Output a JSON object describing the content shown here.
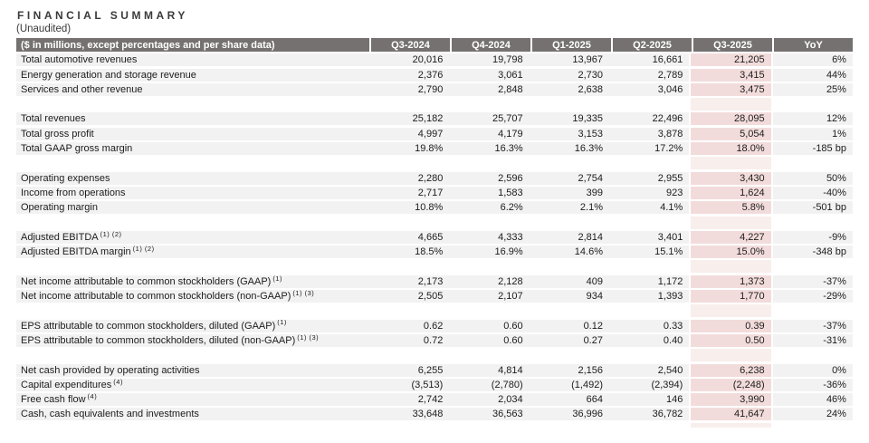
{
  "title": "FINANCIAL SUMMARY",
  "subtitle": "(Unaudited)",
  "colors": {
    "header_bg": "#767171",
    "header_text": "#ffffff",
    "row_bg": "#f2f2f2",
    "highlight_bg": "#f2dcdb",
    "highlight_faint_bg": "#f8eeec",
    "text": "#1c1c1c"
  },
  "table": {
    "columns": [
      "($ in millions, except percentages and per share data)",
      "Q3-2024",
      "Q4-2024",
      "Q1-2025",
      "Q2-2025",
      "Q3-2025",
      "YoY"
    ],
    "highlight_column": "Q3-2025",
    "highlight_value_index": 4,
    "rows": [
      {
        "type": "data",
        "label": "Total automotive revenues",
        "sup": "",
        "values": [
          "20,016",
          "19,798",
          "13,967",
          "16,661",
          "21,205",
          "6%"
        ]
      },
      {
        "type": "data",
        "label": "Energy generation and storage revenue",
        "sup": "",
        "values": [
          "2,376",
          "3,061",
          "2,730",
          "2,789",
          "3,415",
          "44%"
        ]
      },
      {
        "type": "data",
        "label": "Services and other revenue",
        "sup": "",
        "values": [
          "2,790",
          "2,848",
          "2,638",
          "3,046",
          "3,475",
          "25%"
        ]
      },
      {
        "type": "spacer"
      },
      {
        "type": "data",
        "label": "Total revenues",
        "sup": "",
        "values": [
          "25,182",
          "25,707",
          "19,335",
          "22,496",
          "28,095",
          "12%"
        ]
      },
      {
        "type": "data",
        "label": "Total gross profit",
        "sup": "",
        "values": [
          "4,997",
          "4,179",
          "3,153",
          "3,878",
          "5,054",
          "1%"
        ]
      },
      {
        "type": "data",
        "label": "Total GAAP gross margin",
        "sup": "",
        "values": [
          "19.8%",
          "16.3%",
          "16.3%",
          "17.2%",
          "18.0%",
          "-185 bp"
        ]
      },
      {
        "type": "spacer"
      },
      {
        "type": "data",
        "label": "Operating expenses",
        "sup": "",
        "values": [
          "2,280",
          "2,596",
          "2,754",
          "2,955",
          "3,430",
          "50%"
        ]
      },
      {
        "type": "data",
        "label": "Income from operations",
        "sup": "",
        "values": [
          "2,717",
          "1,583",
          "399",
          "923",
          "1,624",
          "-40%"
        ]
      },
      {
        "type": "data",
        "label": "Operating margin",
        "sup": "",
        "values": [
          "10.8%",
          "6.2%",
          "2.1%",
          "4.1%",
          "5.8%",
          "-501 bp"
        ]
      },
      {
        "type": "spacer"
      },
      {
        "type": "data",
        "label": "Adjusted EBITDA",
        "sup": "(1) (2)",
        "values": [
          "4,665",
          "4,333",
          "2,814",
          "3,401",
          "4,227",
          "-9%"
        ]
      },
      {
        "type": "data",
        "label": "Adjusted EBITDA margin",
        "sup": "(1) (2)",
        "values": [
          "18.5%",
          "16.9%",
          "14.6%",
          "15.1%",
          "15.0%",
          "-348 bp"
        ]
      },
      {
        "type": "spacer"
      },
      {
        "type": "data",
        "label": "Net income attributable to common stockholders (GAAP)",
        "sup": "(1)",
        "values": [
          "2,173",
          "2,128",
          "409",
          "1,172",
          "1,373",
          "-37%"
        ]
      },
      {
        "type": "data",
        "label": "Net income attributable to common stockholders (non-GAAP)",
        "sup": "(1) (3)",
        "values": [
          "2,505",
          "2,107",
          "934",
          "1,393",
          "1,770",
          "-29%"
        ]
      },
      {
        "type": "spacer"
      },
      {
        "type": "data",
        "label": "EPS attributable to common stockholders, diluted (GAAP)",
        "sup": "(1)",
        "values": [
          "0.62",
          "0.60",
          "0.12",
          "0.33",
          "0.39",
          "-37%"
        ]
      },
      {
        "type": "data",
        "label": "EPS attributable to common stockholders, diluted (non-GAAP)",
        "sup": "(1) (3)",
        "values": [
          "0.72",
          "0.60",
          "0.27",
          "0.40",
          "0.50",
          "-31%"
        ]
      },
      {
        "type": "spacer"
      },
      {
        "type": "data",
        "label": "Net cash provided by operating activities",
        "sup": "",
        "values": [
          "6,255",
          "4,814",
          "2,156",
          "2,540",
          "6,238",
          "0%"
        ]
      },
      {
        "type": "data",
        "label": "Capital expenditures",
        "sup": "(4)",
        "values": [
          "(3,513)",
          "(2,780)",
          "(1,492)",
          "(2,394)",
          "(2,248)",
          "-36%"
        ]
      },
      {
        "type": "data",
        "label": "Free cash flow",
        "sup": "(4)",
        "values": [
          "2,742",
          "2,034",
          "664",
          "146",
          "3,990",
          "46%"
        ]
      },
      {
        "type": "data",
        "label": "Cash, cash equivalents and investments",
        "sup": "",
        "values": [
          "33,648",
          "36,563",
          "36,996",
          "36,782",
          "41,647",
          "24%"
        ]
      }
    ]
  }
}
